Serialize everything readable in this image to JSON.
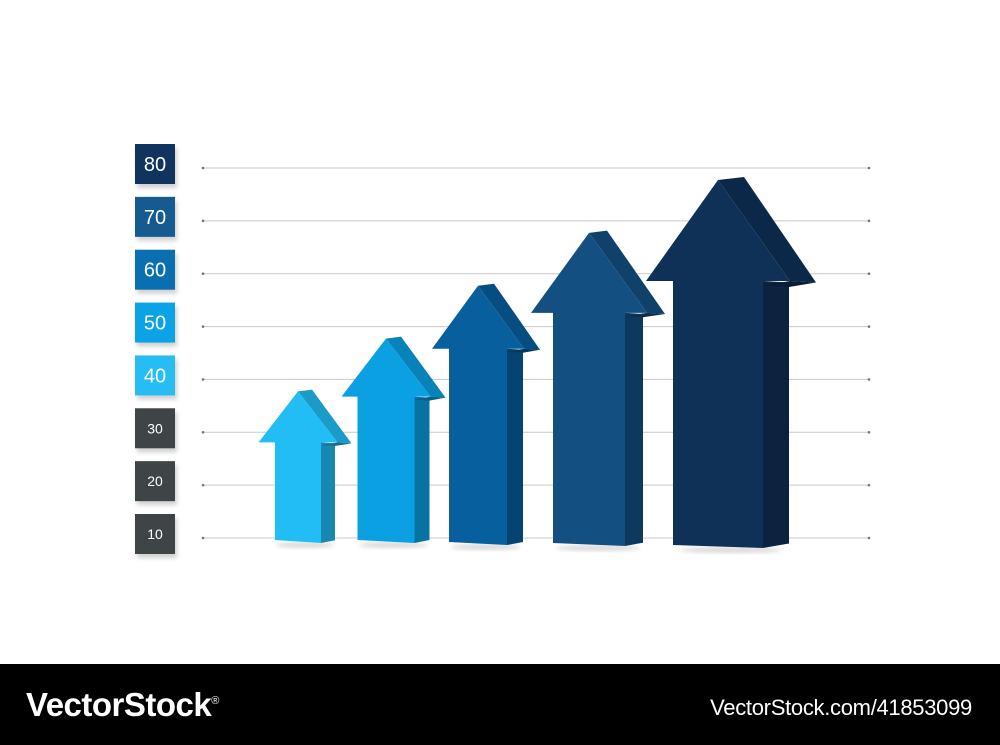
{
  "chart_data": {
    "type": "bar",
    "style": "3d-arrows",
    "ylim": [
      5,
      85
    ],
    "ticks": [
      {
        "label": "10",
        "value": 10,
        "color": "#3f4446"
      },
      {
        "label": "20",
        "value": 20,
        "color": "#3f4446"
      },
      {
        "label": "30",
        "value": 30,
        "color": "#3f4446"
      },
      {
        "label": "40",
        "value": 40,
        "color": "#25bdf4"
      },
      {
        "label": "50",
        "value": 50,
        "color": "#0aa3e6"
      },
      {
        "label": "60",
        "value": 60,
        "color": "#0a6fb1"
      },
      {
        "label": "70",
        "value": 70,
        "color": "#155a90"
      },
      {
        "label": "80",
        "value": 80,
        "color": "#10345d"
      }
    ],
    "values": [
      40,
      50,
      60,
      70,
      80
    ],
    "colors": [
      "#21bdf4",
      "#0aa0e2",
      "#075f9e",
      "#144f82",
      "#0f3158"
    ],
    "grid": true,
    "legend": "none"
  },
  "footer": {
    "brand": "VectorStock",
    "registered": "®",
    "image_id": "VectorStock.com/41853099"
  }
}
